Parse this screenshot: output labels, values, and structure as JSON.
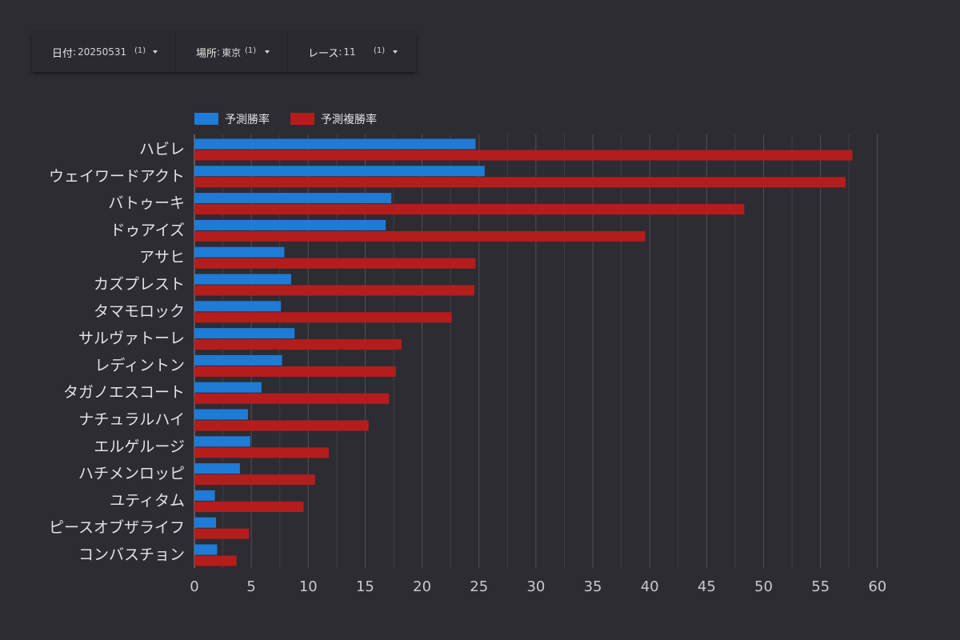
{
  "filters": [
    {
      "label": "日付",
      "value": "20250531",
      "count": "(1)"
    },
    {
      "label": "場所",
      "value": "東京",
      "count": "(1)"
    },
    {
      "label": "レース",
      "value": "11",
      "count": "(1)"
    }
  ],
  "colors": {
    "background": "#2d2c32",
    "win": "#1f7bd6",
    "place": "#b51d1d",
    "grid": "#505057",
    "text": "#e3e3e6"
  },
  "chart_data": {
    "type": "bar",
    "orientation": "horizontal",
    "categories": [
      "ハビレ",
      "ウェイワードアクト",
      "バトゥーキ",
      "ドゥアイズ",
      "アサヒ",
      "カズプレスト",
      "タマモロック",
      "サルヴァトーレ",
      "レディントン",
      "タガノエスコート",
      "ナチュラルハイ",
      "エルゲルージ",
      "ハチメンロッピ",
      "ユティタム",
      "ピースオブザライフ",
      "コンバスチョン"
    ],
    "series": [
      {
        "name": "予測勝率",
        "color": "#1f7bd6",
        "values": [
          24.7,
          25.5,
          17.3,
          16.8,
          7.9,
          8.5,
          7.6,
          8.8,
          7.7,
          5.9,
          4.7,
          4.9,
          4.0,
          1.8,
          1.9,
          2.0
        ]
      },
      {
        "name": "予測複勝率",
        "color": "#b51d1d",
        "values": [
          57.8,
          57.2,
          48.3,
          39.6,
          24.7,
          24.6,
          22.6,
          18.2,
          17.7,
          17.1,
          15.3,
          11.8,
          10.6,
          9.6,
          4.8,
          3.7
        ]
      }
    ],
    "xlim": [
      0,
      60
    ],
    "xticks": [
      "0",
      "5",
      "10",
      "15",
      "20",
      "25",
      "30",
      "35",
      "40",
      "45",
      "50",
      "55",
      "60"
    ],
    "legend_position": "top-left",
    "grid": true
  }
}
